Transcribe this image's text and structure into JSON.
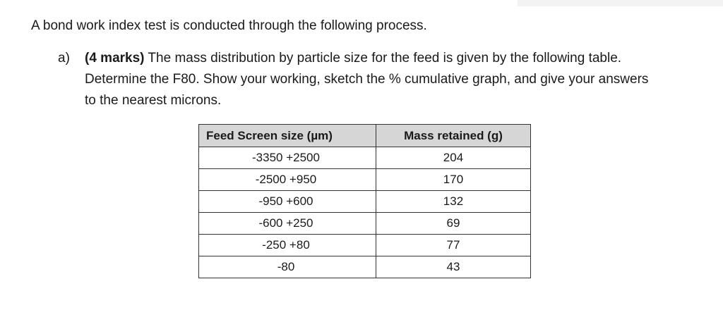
{
  "intro": "A bond work index test is conducted through the following process.",
  "question": {
    "label": "a)",
    "marks": "(4 marks)",
    "line1_rest": " The mass distribution by particle size for the feed is given by the following table.",
    "line2": "Determine the F80. Show your working, sketch the % cumulative graph, and give your answers",
    "line3": "to the nearest microns."
  },
  "table": {
    "headers": [
      "Feed Screen size (µm)",
      "Mass retained (g)"
    ],
    "rows": [
      {
        "size": "-3350  +2500",
        "mass": "204"
      },
      {
        "size": "-2500 +950",
        "mass": "170"
      },
      {
        "size": "-950 +600",
        "mass": "132"
      },
      {
        "size": "-600 +250",
        "mass": "69"
      },
      {
        "size": "-250 +80",
        "mass": "77"
      },
      {
        "size": "-80",
        "mass": "43"
      }
    ]
  }
}
